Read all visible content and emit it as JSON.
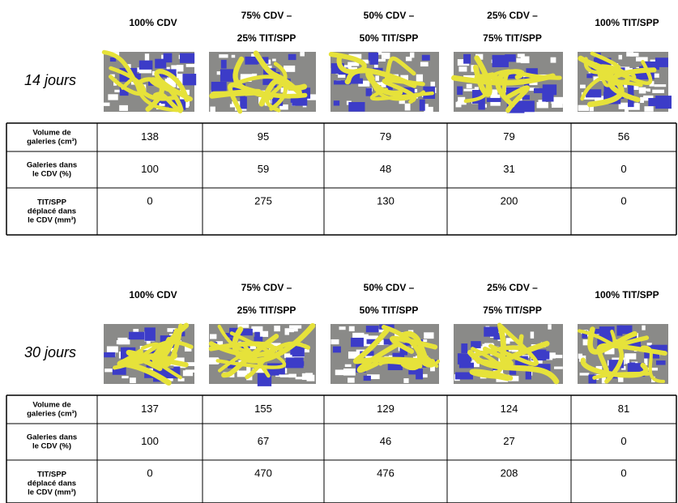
{
  "panels": [
    {
      "period": "14 jours",
      "headers": [
        [
          "100% CDV"
        ],
        [
          "75% CDV –",
          "25% TIT/SPP"
        ],
        [
          "50% CDV –",
          "50% TIT/SPP"
        ],
        [
          "25% CDV –",
          "75% TIT/SPP"
        ],
        [
          "100% TIT/SPP"
        ]
      ],
      "rows": [
        {
          "label": [
            "Volume de",
            "galeries (cm³)"
          ],
          "values": [
            138,
            95,
            79,
            79,
            56
          ]
        },
        {
          "label": [
            "Galeries dans",
            "le CDV (%)"
          ],
          "values": [
            100,
            59,
            48,
            31,
            0
          ]
        },
        {
          "label": [
            "TIT/SPP",
            "déplacé dans",
            "le CDV (mm³)"
          ],
          "values": [
            0,
            275,
            130,
            200,
            0
          ]
        }
      ]
    },
    {
      "period": "30 jours",
      "headers": [
        [
          "100% CDV"
        ],
        [
          "75% CDV –",
          "25% TIT/SPP"
        ],
        [
          "50% CDV –",
          "50% TIT/SPP"
        ],
        [
          "25% CDV –",
          "75% TIT/SPP"
        ],
        [
          "100% TIT/SPP"
        ]
      ],
      "rows": [
        {
          "label": [
            "Volume de",
            "galeries (cm³)"
          ],
          "values": [
            137,
            155,
            129,
            124,
            81
          ]
        },
        {
          "label": [
            "Galeries dans",
            "le CDV (%)"
          ],
          "values": [
            100,
            67,
            46,
            27,
            0
          ]
        },
        {
          "label": [
            "TIT/SPP",
            "déplacé dans",
            "le CDV (mm³)"
          ],
          "values": [
            0,
            470,
            476,
            208,
            0
          ]
        }
      ]
    }
  ]
}
